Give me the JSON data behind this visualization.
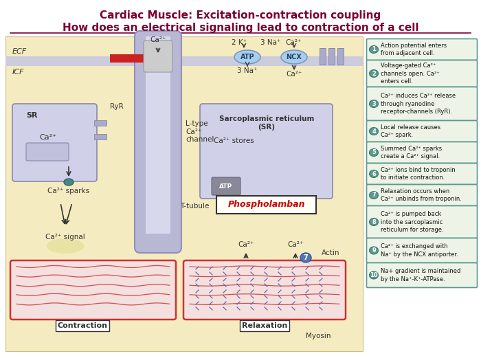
{
  "title_line1": "Cardiac Muscle: Excitation-contraction coupling",
  "title_line2": "How does an electrical signaling lead to contraction of a cell",
  "title_color": "#7B0032",
  "bg_color": "#FFFFFF",
  "main_bg": "#F5EBC0",
  "sidebar_bg": "#EEF3E8",
  "sidebar_border": "#5B9B8B",
  "steps": [
    "Action potential enters\nfrom adjacent cell.",
    "Voltage-gated Ca²⁺\nchannels open. Ca²⁺\nenters cell.",
    "Ca²⁺ induces Ca²⁺ release\nthrough ryanodine\nreceptor-channels (RyR).",
    "Local release causes\nCa²⁺ spark.",
    "Summed Ca²⁺ sparks\ncreate a Ca²⁺ signal.",
    "Ca²⁺ ions bind to troponin\nto initiate contraction.",
    "Relaxation occurs when\nCa²⁺ unbinds from troponin.",
    "Ca²⁺ is pumped back\ninto the sarcoplasmic\nreticulum for storage.",
    "Ca²⁺ is exchanged with\nNa⁺ by the NCX antiporter.",
    "Na+ gradient is maintained\nby the Na⁺-K⁺-ATPase."
  ],
  "step_heights": [
    28,
    36,
    46,
    28,
    28,
    28,
    28,
    44,
    33,
    33
  ],
  "ttube_color": "#AAAACC",
  "sr_color": "#C8C8E0",
  "membrane_color": "#BBBBDD"
}
